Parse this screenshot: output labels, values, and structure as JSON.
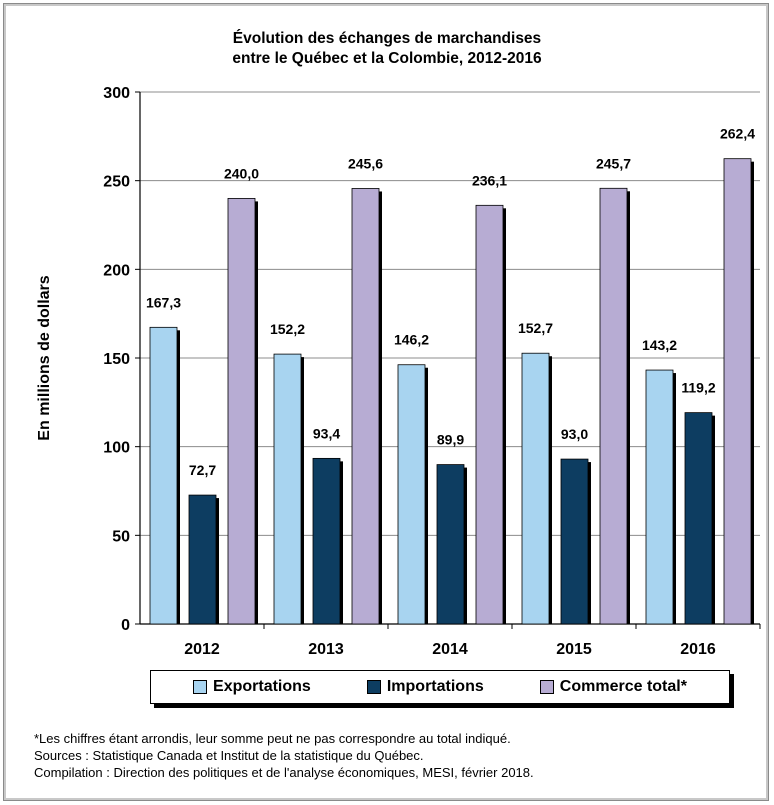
{
  "chart_data": {
    "type": "bar",
    "title_line1": "Évolution des échanges de marchandises",
    "title_line2": "entre le Québec et la Colombie, 2012-2016",
    "xlabel": "",
    "ylabel": "En millions de dollars",
    "ylim": [
      0,
      300
    ],
    "yticks": [
      "0",
      "50",
      "100",
      "150",
      "200",
      "250",
      "300"
    ],
    "ytick_values": [
      0,
      50,
      100,
      150,
      200,
      250,
      300
    ],
    "grid": true,
    "legend_position": "bottom",
    "categories": [
      "2012",
      "2013",
      "2014",
      "2015",
      "2016"
    ],
    "series": [
      {
        "name": "Exportations",
        "color": "#a8d4f0",
        "values": [
          167.3,
          152.2,
          146.2,
          152.7,
          143.2
        ],
        "labels": [
          "167,3",
          "152,2",
          "146,2",
          "152,7",
          "143,2"
        ]
      },
      {
        "name": "Importations",
        "color": "#0d3d61",
        "values": [
          72.7,
          93.4,
          89.9,
          93.0,
          119.2
        ],
        "labels": [
          "72,7",
          "93,4",
          "89,9",
          "93,0",
          "119,2"
        ]
      },
      {
        "name": "Commerce total*",
        "color": "#b7acd3",
        "values": [
          240.0,
          245.6,
          236.1,
          245.7,
          262.4
        ],
        "labels": [
          "240,0",
          "245,6",
          "236,1",
          "245,7",
          "262,4"
        ]
      }
    ]
  },
  "notes": {
    "line1": "*Les chiffres étant arrondis, leur somme peut ne pas correspondre au total indiqué.",
    "line2": "Sources : Statistique Canada et Institut de la statistique du Québec.",
    "line3": "Compilation : Direction des politiques et de l'analyse économiques, MESI, février 2018."
  }
}
